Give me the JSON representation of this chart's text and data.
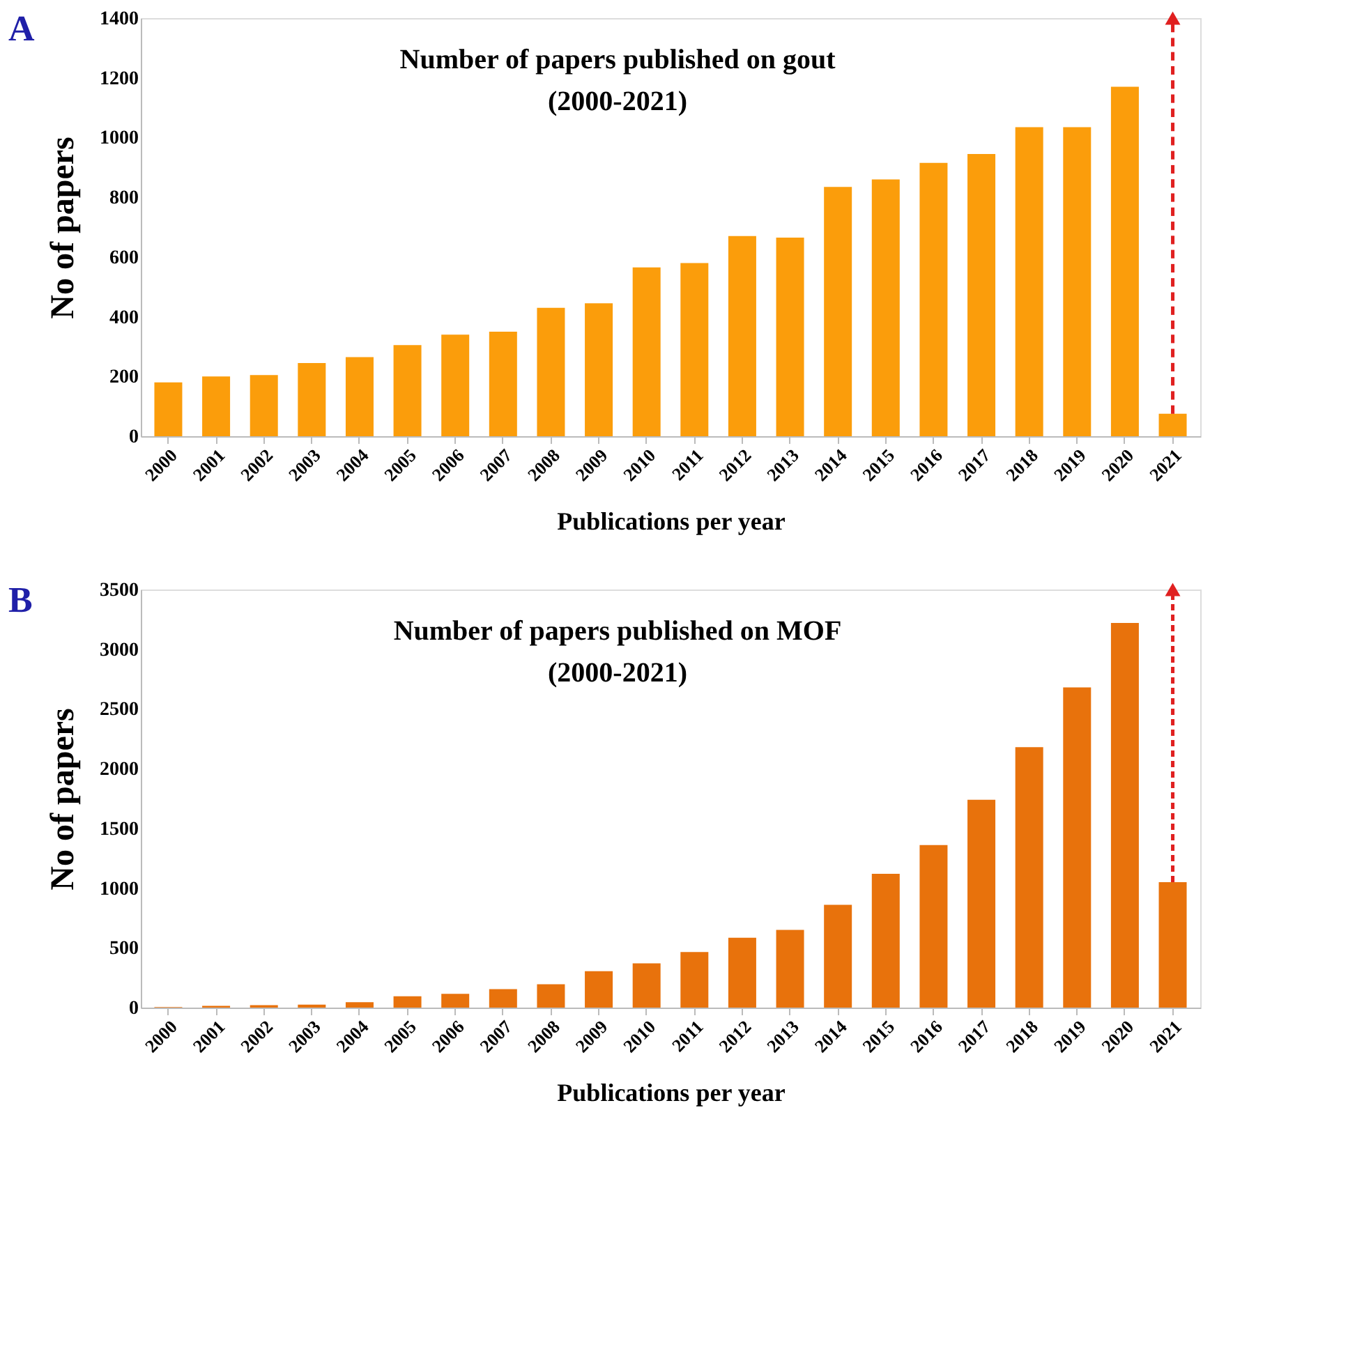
{
  "chart_data": [
    {
      "type": "bar",
      "title": "Number of papers published on gout",
      "subtitle": "(2000-2021)",
      "xlabel": "Publications per year",
      "ylabel": "No of papers",
      "annotations": [
        "A"
      ],
      "categories": [
        "2000",
        "2001",
        "2002",
        "2003",
        "2004",
        "2005",
        "2006",
        "2007",
        "2008",
        "2009",
        "2010",
        "2011",
        "2012",
        "2013",
        "2014",
        "2015",
        "2016",
        "2017",
        "2018",
        "2019",
        "2020",
        "2021"
      ],
      "values": [
        180,
        200,
        205,
        245,
        265,
        305,
        340,
        350,
        430,
        445,
        565,
        580,
        670,
        665,
        835,
        860,
        915,
        945,
        1035,
        1035,
        1170,
        75
      ],
      "color": "#fb9d0b",
      "ylim": [
        0,
        1400
      ],
      "yticks": [
        0,
        200,
        400,
        600,
        800,
        1000,
        1200,
        1400
      ]
    },
    {
      "type": "bar",
      "title": "Number of papers published on MOF",
      "subtitle": "(2000-2021)",
      "xlabel": "Publications per year",
      "ylabel": "No of papers",
      "annotations": [
        "B"
      ],
      "categories": [
        "2000",
        "2001",
        "2002",
        "2003",
        "2004",
        "2005",
        "2006",
        "2007",
        "2008",
        "2009",
        "2010",
        "2011",
        "2012",
        "2013",
        "2014",
        "2015",
        "2016",
        "2017",
        "2018",
        "2019",
        "2020",
        "2021"
      ],
      "values": [
        5,
        15,
        20,
        25,
        45,
        95,
        115,
        155,
        195,
        305,
        370,
        465,
        585,
        650,
        860,
        1120,
        1360,
        1740,
        2180,
        2680,
        3220,
        1050
      ],
      "color": "#e8720c",
      "ylim": [
        0,
        3500
      ],
      "yticks": [
        0,
        500,
        1000,
        1500,
        2000,
        2500,
        3000,
        3500
      ]
    }
  ]
}
